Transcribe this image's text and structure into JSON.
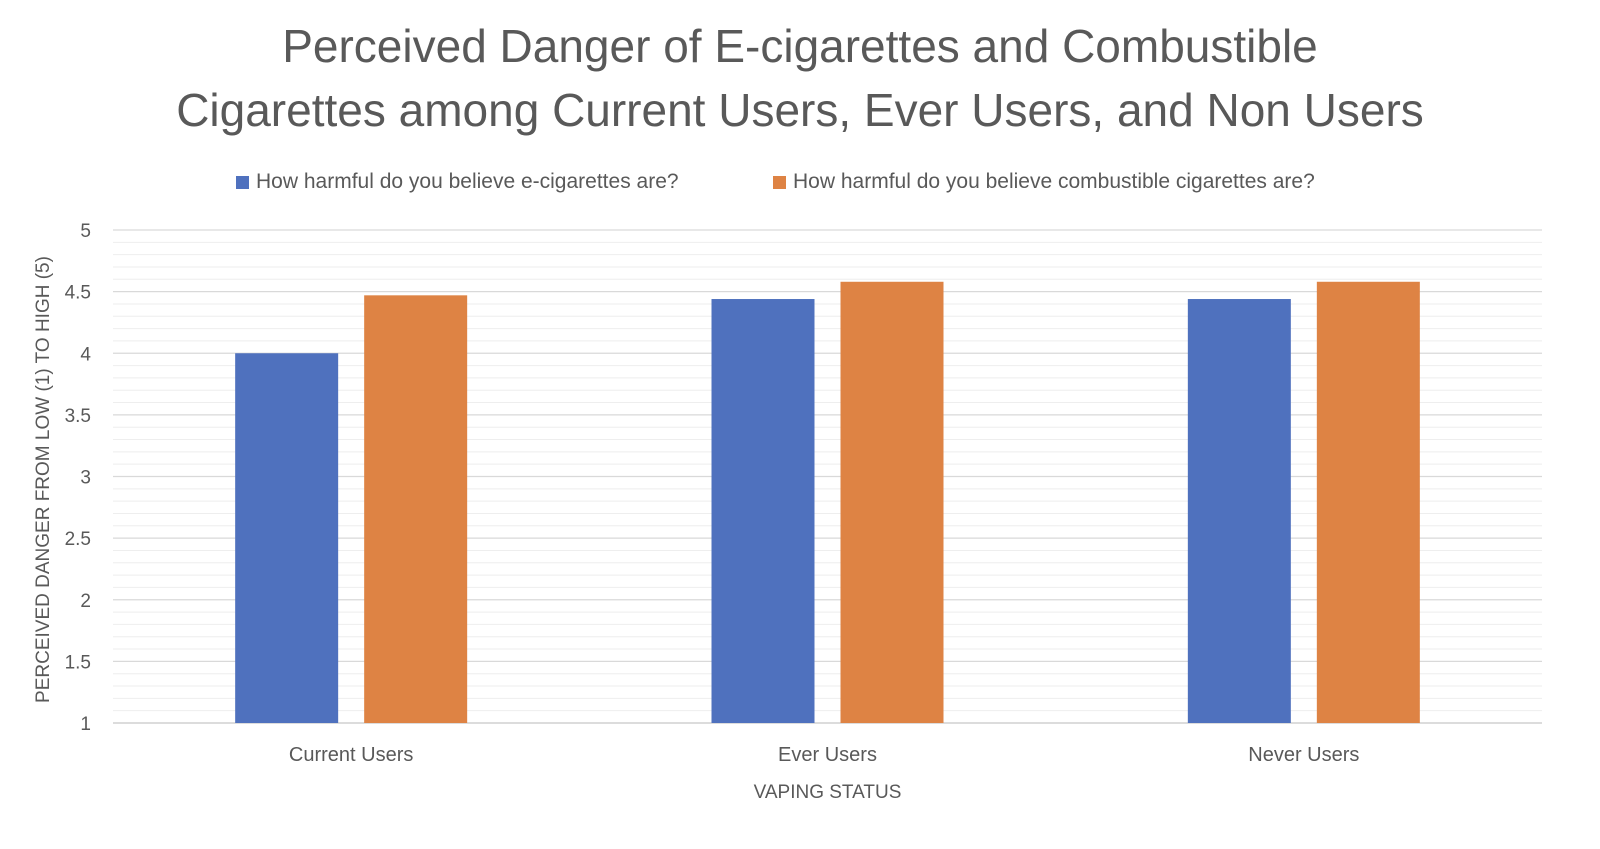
{
  "chart_data": {
    "type": "bar",
    "title_lines": [
      "Perceived Danger of E-cigarettes and Combustible",
      "Cigarettes among Current Users, Ever Users, and Non Users"
    ],
    "xlabel": "VAPING STATUS",
    "ylabel": "PERCEIVED DANGER FROM LOW (1) TO HIGH (5)",
    "categories": [
      "Current Users",
      "Ever Users",
      "Never Users"
    ],
    "series": [
      {
        "name": "How harmful do you believe e-cigarettes are?",
        "color": "#4F71BE",
        "values": [
          4.0,
          4.44,
          4.44
        ]
      },
      {
        "name": "How harmful do you believe combustible cigarettes are?",
        "color": "#DE8344",
        "values": [
          4.47,
          4.58,
          4.58
        ]
      }
    ],
    "ylim": [
      1,
      5
    ],
    "yticks": [
      "1",
      "1.5",
      "2",
      "2.5",
      "3",
      "3.5",
      "4",
      "4.5",
      "5"
    ],
    "grid": true,
    "legend_position": "top"
  }
}
